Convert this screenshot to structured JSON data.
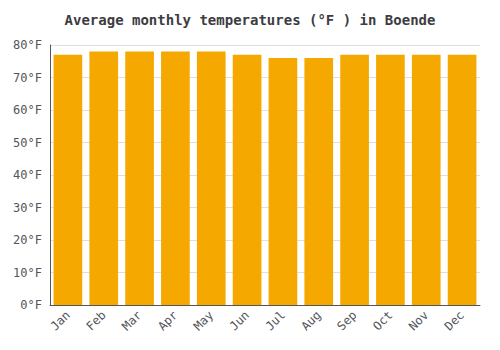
{
  "chart_data": {
    "type": "bar",
    "title": "Average monthly temperatures (°F ) in Boende",
    "categories": [
      "Jan",
      "Feb",
      "Mar",
      "Apr",
      "May",
      "Jun",
      "Jul",
      "Aug",
      "Sep",
      "Oct",
      "Nov",
      "Dec"
    ],
    "values": [
      77,
      78,
      78,
      78,
      78,
      77,
      76,
      76,
      77,
      77,
      77,
      77
    ],
    "color": "#F5A800",
    "ylim": [
      0,
      80
    ],
    "yticks": [
      {
        "value": 0,
        "label": "0°F"
      },
      {
        "value": 10,
        "label": "10°F"
      },
      {
        "value": 20,
        "label": "20°F"
      },
      {
        "value": 30,
        "label": "30°F"
      },
      {
        "value": 40,
        "label": "40°F"
      },
      {
        "value": 50,
        "label": "50°F"
      },
      {
        "value": 60,
        "label": "60°F"
      },
      {
        "value": 70,
        "label": "70°F"
      },
      {
        "value": 80,
        "label": "80°F"
      }
    ],
    "grid": true
  }
}
